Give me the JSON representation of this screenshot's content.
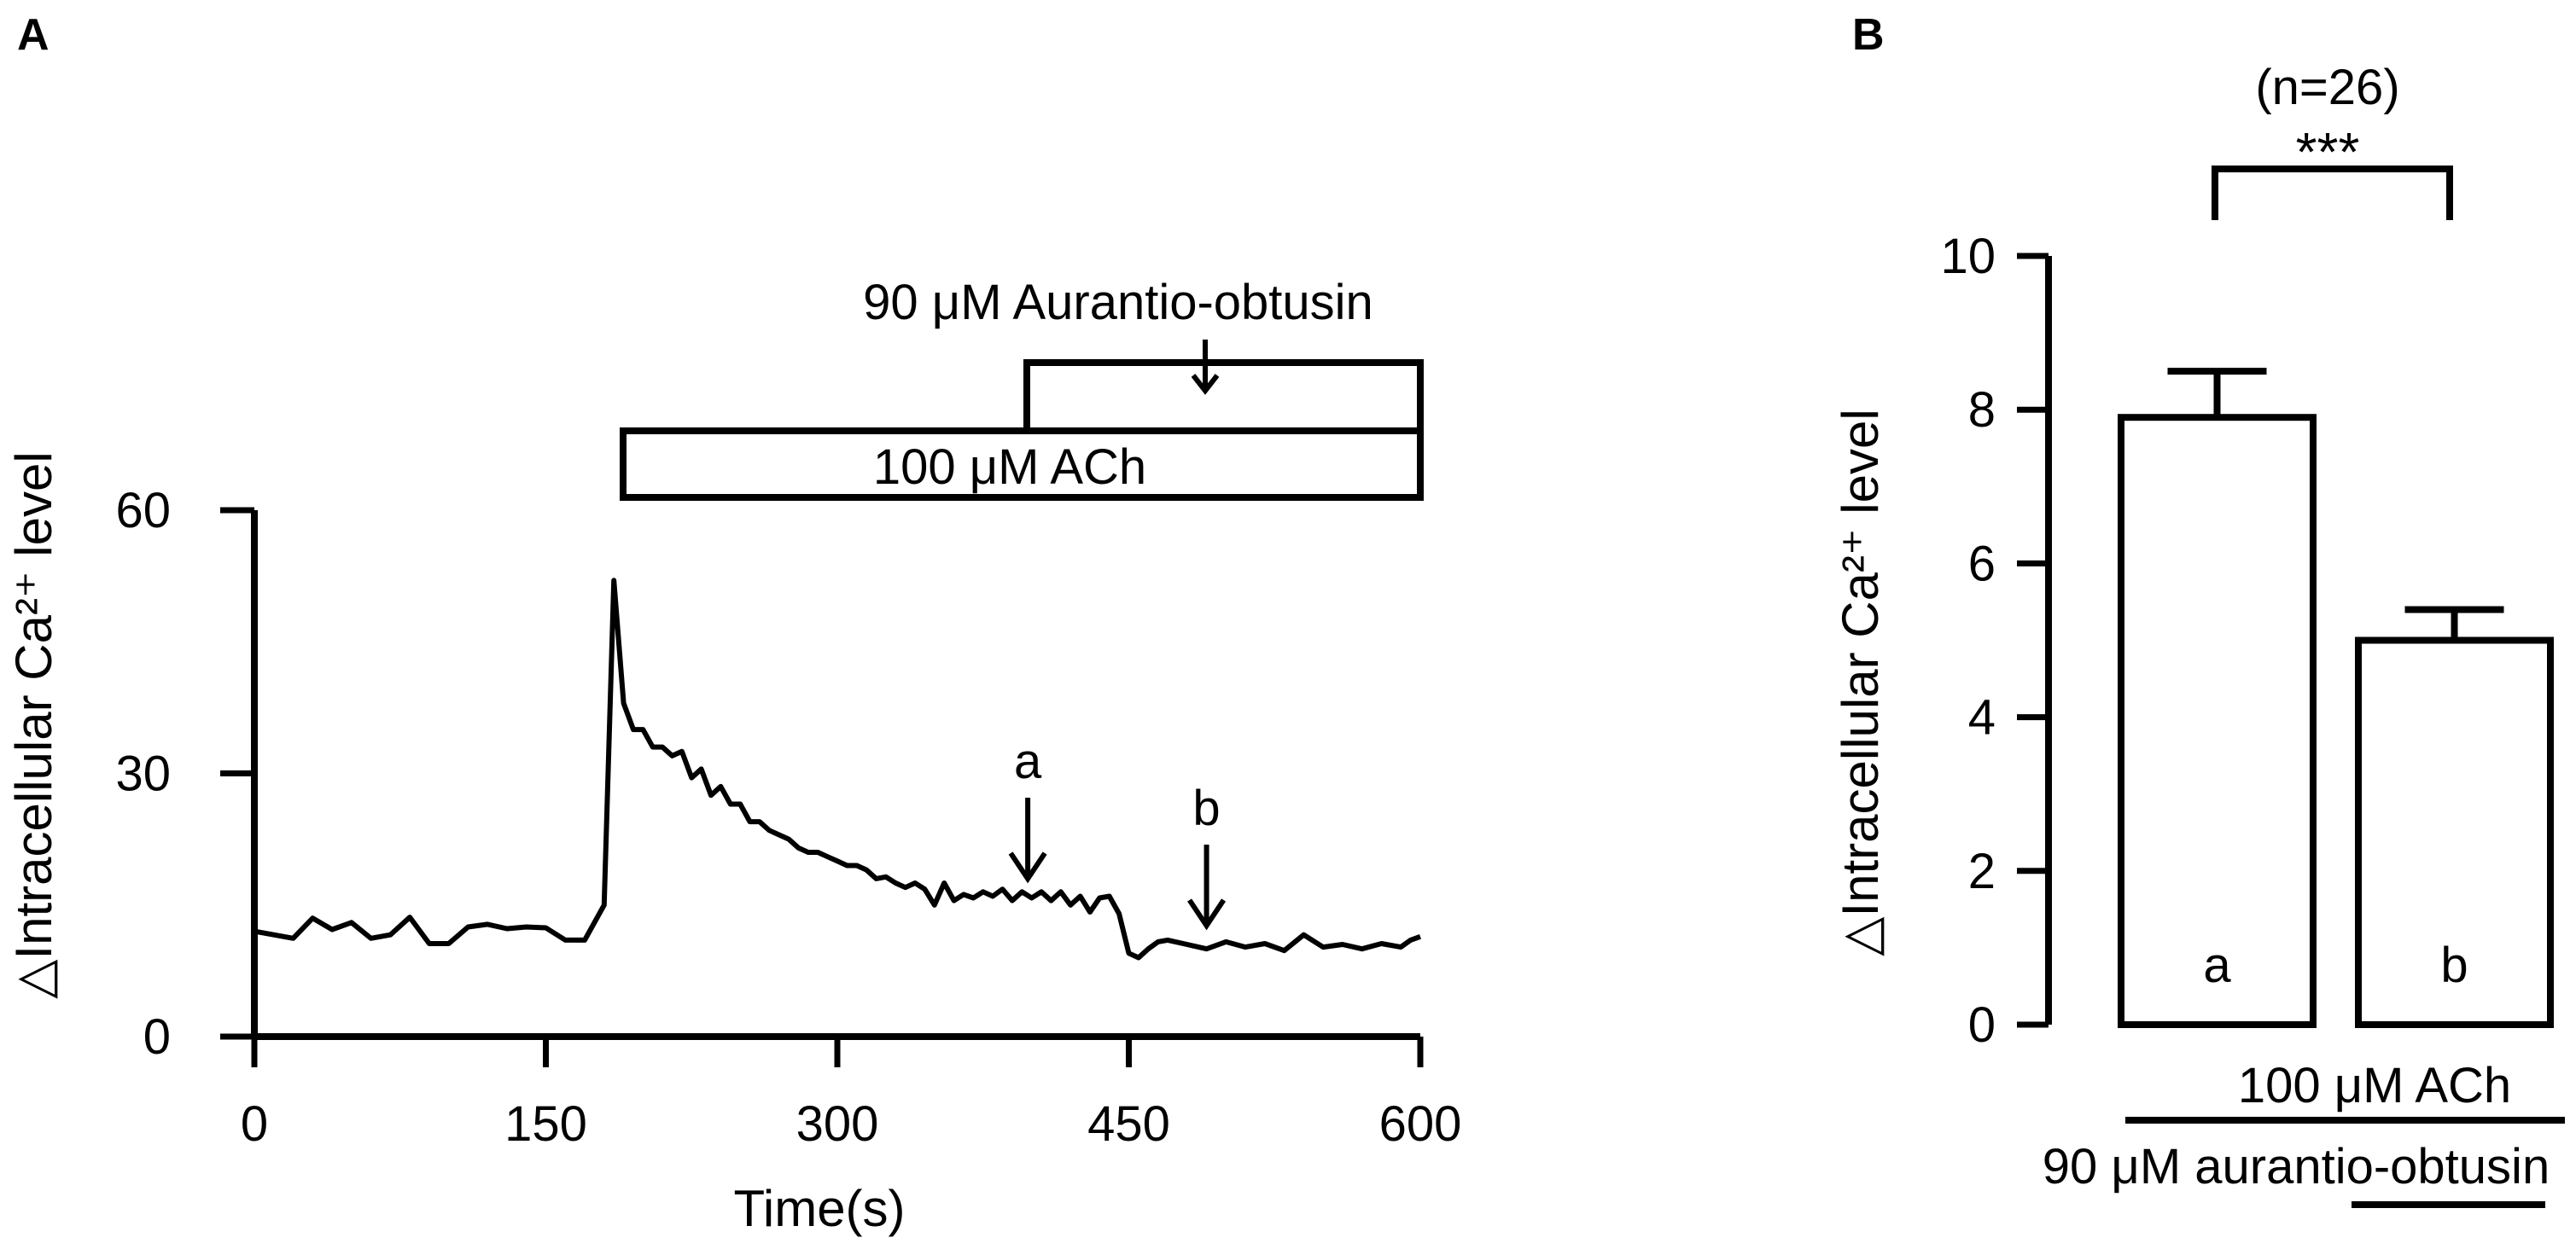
{
  "chart_data": [
    {
      "panel": "A",
      "type": "line",
      "xlabel": "Time(s)",
      "ylabel": "△Intracellular Ca²⁺ level",
      "xlim": [
        0,
        600
      ],
      "ylim": [
        0,
        60
      ],
      "xticks": [
        "0",
        "150",
        "300",
        "450",
        "600"
      ],
      "yticks": [
        "0",
        "30",
        "60"
      ],
      "series": [
        {
          "x": [
            0,
            10,
            20,
            30,
            40,
            50,
            60,
            70,
            80,
            90,
            100,
            110,
            120,
            130,
            140,
            150,
            160,
            170,
            180,
            185,
            190,
            195,
            200,
            205,
            210,
            215,
            220,
            225,
            230,
            235,
            240,
            245,
            250,
            255,
            260,
            265,
            270,
            275,
            280,
            285,
            290,
            295,
            300,
            305,
            310,
            315,
            320,
            325,
            330,
            335,
            340,
            345,
            350,
            355,
            360,
            365,
            370,
            375,
            380,
            385,
            390,
            395,
            400,
            405,
            410,
            415,
            420,
            425,
            430,
            435,
            440,
            445,
            450,
            455,
            460,
            465,
            470,
            480,
            490,
            500,
            510,
            520,
            530,
            540,
            550,
            560,
            570,
            580,
            590,
            595,
            600
          ],
          "y": [
            12,
            11.6,
            11.2,
            13.5,
            12.2,
            13,
            11.2,
            11.6,
            13.6,
            10.6,
            10.6,
            12.5,
            12.8,
            12.3,
            12.5,
            12.4,
            11,
            11,
            15,
            52,
            38,
            35,
            35,
            33,
            33,
            32,
            32.5,
            29.5,
            30.5,
            27.5,
            28.5,
            26.5,
            26.5,
            24.5,
            24.5,
            23.5,
            23,
            22.5,
            21.5,
            21,
            21,
            20.5,
            20,
            19.5,
            19.5,
            19,
            18,
            18.2,
            17.5,
            17,
            17.5,
            16.8,
            15,
            17.5,
            15.5,
            16.2,
            15.8,
            16.5,
            16,
            16.8,
            15.5,
            16.5,
            15.8,
            16.5,
            15.5,
            16.5,
            15,
            16,
            14.2,
            15.8,
            16,
            14,
            9.5,
            9,
            10,
            10.8,
            11,
            10.5,
            10,
            10.8,
            10.2,
            10.6,
            9.8,
            11.6,
            10.2,
            10.5,
            10,
            10.6,
            10.2,
            11,
            11.4
          ]
        }
      ],
      "treatments": [
        {
          "label": "100 μM ACh",
          "start": 190,
          "end": 600
        },
        {
          "label": "90 μM Aurantio-obtusin",
          "start": 398,
          "end": 600
        }
      ],
      "annotations": [
        {
          "label": "a",
          "x": 398
        },
        {
          "label": "b",
          "x": 490
        }
      ]
    },
    {
      "panel": "B",
      "type": "bar",
      "ylabel": "△Intracellular Ca²⁺ level",
      "ylim": [
        0,
        10
      ],
      "yticks": [
        "0",
        "2",
        "4",
        "6",
        "8",
        "10"
      ],
      "categories": [
        "a",
        "b"
      ],
      "values": [
        7.9,
        5.0
      ],
      "errors": [
        0.6,
        0.4
      ],
      "n_label": "(n=26)",
      "significance": "***",
      "condition_labels": {
        "ach": "100 μM ACh",
        "aurantio": "90 μM aurantio-obtusin"
      }
    }
  ]
}
